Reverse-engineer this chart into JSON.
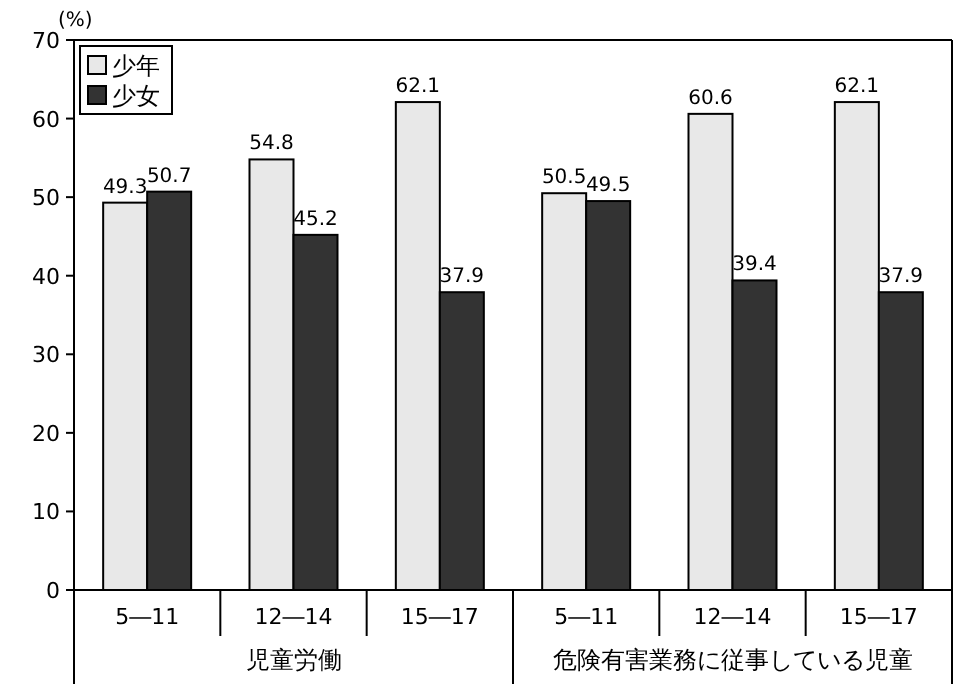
{
  "chart_data": {
    "type": "bar",
    "ylabel": "(%)",
    "categories": [
      "5―11",
      "12―14",
      "15―17",
      "5―11",
      "12―14",
      "15―17"
    ],
    "series": [
      {
        "name": "少年",
        "color": "#e8e8e8",
        "values": [
          49.3,
          54.8,
          62.1,
          50.5,
          60.6,
          62.1
        ]
      },
      {
        "name": "少女",
        "color": "#333333",
        "values": [
          50.7,
          45.2,
          37.9,
          49.5,
          39.4,
          37.9
        ]
      }
    ],
    "annotations": [
      "児童労働",
      "危険有害業務に従事している児童"
    ],
    "ylim": [
      0,
      70
    ],
    "yticks": [
      0,
      10,
      20,
      30,
      40,
      50,
      60,
      70
    ],
    "legend": "top left",
    "data_labels": true
  }
}
